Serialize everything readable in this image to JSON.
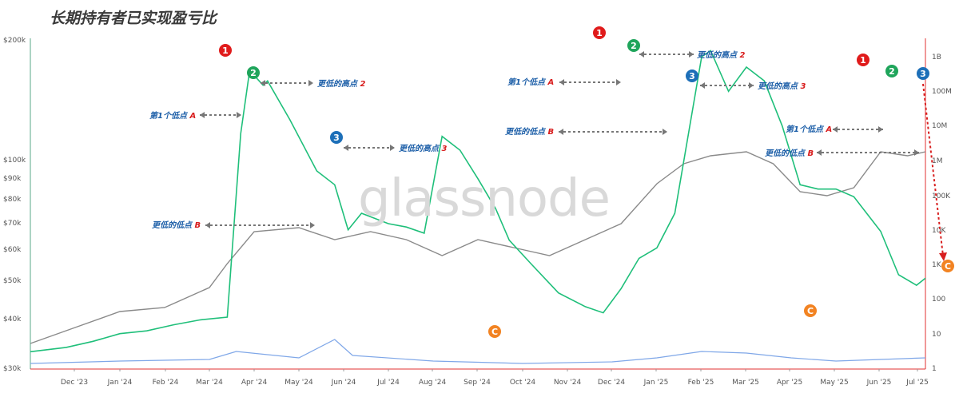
{
  "chart_data": {
    "type": "line",
    "title": "长期持有者已实现盈亏比",
    "watermark": "glassnode",
    "x_ticks": [
      "Dec '23",
      "Jan '24",
      "Feb '24",
      "Mar '24",
      "Apr '24",
      "May '24",
      "Jun '24",
      "Jul '24",
      "Aug '24",
      "Sep '24",
      "Oct '24",
      "Nov '24",
      "Dec '24",
      "Jan '25",
      "Feb '25",
      "Mar '25",
      "Apr '25",
      "May '25",
      "Jun '25",
      "Jul '25"
    ],
    "y_left_ticks": [
      "$200k",
      "$100k",
      "$90k",
      "$80k",
      "$70k",
      "$60k",
      "$50k",
      "$40k",
      "$30k"
    ],
    "y_right_ticks": [
      "1B",
      "100M",
      "10M",
      "1M",
      "100K",
      "10K",
      "1K",
      "100",
      "10",
      "1"
    ],
    "y_left_scale": "log",
    "y_right_scale": "log",
    "colors": {
      "ratio": "#1fbf7a",
      "price": "#8a8a8a",
      "volume": "#7fa7e8",
      "red": "#e01b1b",
      "green": "#1fa55b",
      "blue": "#1d6fb8",
      "orange": "#f28322",
      "annotation_blue": "#1d5fa8",
      "annotation_red": "#d81e1e"
    },
    "series": [
      {
        "key": "ratio",
        "axis": "right",
        "x": [
          0,
          0.04,
          0.07,
          0.1,
          0.13,
          0.16,
          0.19,
          0.22,
          0.235,
          0.245,
          0.26,
          0.265,
          0.29,
          0.32,
          0.34,
          0.355,
          0.37,
          0.4,
          0.42,
          0.44,
          0.46,
          0.48,
          0.5,
          0.52,
          0.535,
          0.56,
          0.59,
          0.62,
          0.64,
          0.66,
          0.68,
          0.7,
          0.72,
          0.75,
          0.76,
          0.78,
          0.8,
          0.82,
          0.84,
          0.86,
          0.88,
          0.9,
          0.92,
          0.95,
          0.97,
          0.99,
          1.0
        ],
        "y": [
          3,
          4,
          6,
          10,
          12,
          18,
          25,
          30,
          6000000,
          400000000,
          150000000,
          200000000,
          15000000,
          500000,
          200000,
          10000,
          30000,
          15000,
          12000,
          8000,
          5000000,
          2000000,
          300000,
          40000,
          5000,
          1000,
          150,
          60,
          40,
          200,
          1500,
          3000,
          30000,
          1000000000,
          1500000000,
          100000000,
          500000000,
          200000000,
          10000000,
          200000,
          150000,
          150000,
          90000,
          9000,
          500,
          250,
          400
        ],
        "note": "approximate ratio on right log axis (1 to 1B)"
      }
    ],
    "annotations": [
      {
        "marker": "1",
        "color": "red",
        "text": ""
      },
      {
        "marker": "2",
        "color": "green",
        "text": ""
      },
      {
        "marker": "3",
        "color": "blue",
        "text": ""
      },
      {
        "marker": "C",
        "color": "orange",
        "text": ""
      }
    ],
    "labels": {
      "first_low_a": "第1个低点",
      "lower_low_b": "更低的低点",
      "lower_high_2": "更低的高点",
      "lower_high_3": "更低的高点",
      "letter_a": "A",
      "letter_b": "B",
      "num_2": "2",
      "num_3": "3",
      "m1": "1",
      "m2": "2",
      "m3": "3",
      "mc": "C"
    }
  }
}
